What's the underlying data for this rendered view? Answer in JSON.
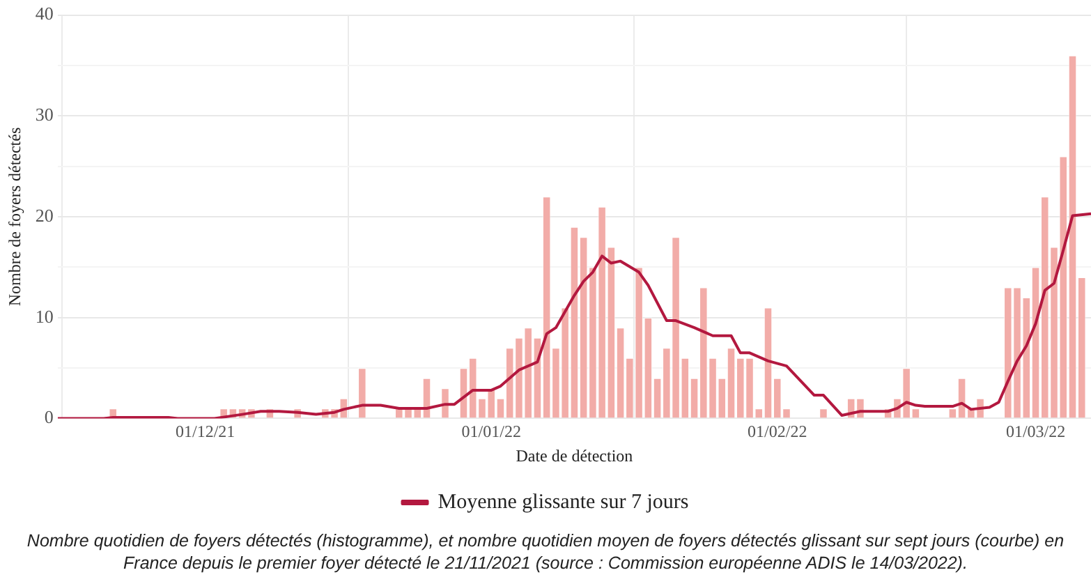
{
  "chart_data": {
    "type": "bar",
    "xlabel": "Date de détection",
    "ylabel": "Nombre de foyers détectés",
    "xlim": [
      "2021-11-15",
      "2022-03-07"
    ],
    "xticks": [
      {
        "value": "2021-12-01",
        "label": "01/12/21"
      },
      {
        "value": "2022-01-01",
        "label": "01/01/22"
      },
      {
        "value": "2022-02-01",
        "label": "01/02/22"
      },
      {
        "value": "2022-03-01",
        "label": "01/03/22"
      }
    ],
    "ylim": [
      0,
      40
    ],
    "yticks": [
      0,
      {
        "value": 5,
        "label": null
      },
      10,
      {
        "value": 15,
        "label": null
      },
      20,
      {
        "value": 25,
        "label": null
      },
      30,
      {
        "value": 35,
        "label": null
      },
      40
    ],
    "grid": true,
    "legend": "bottom",
    "marker": "none",
    "series": [
      {
        "color": "#f2aca8",
        "x": [
          "2021-11-21",
          "2021-12-03",
          "2021-12-04",
          "2021-12-05",
          "2021-12-06",
          "2021-12-08",
          "2021-12-11",
          "2021-12-14",
          "2021-12-15",
          "2021-12-16",
          "2021-12-18",
          "2021-12-22",
          "2021-12-23",
          "2021-12-24",
          "2021-12-25",
          "2021-12-27",
          "2021-12-29",
          "2021-12-30",
          "2021-12-31",
          "2022-01-01",
          "2022-01-02",
          "2022-01-03",
          "2022-01-04",
          "2022-01-05",
          "2022-01-06",
          "2022-01-07",
          "2022-01-08",
          "2022-01-09",
          "2022-01-10",
          "2022-01-11",
          "2022-01-12",
          "2022-01-13",
          "2022-01-14",
          "2022-01-15",
          "2022-01-16",
          "2022-01-17",
          "2022-01-18",
          "2022-01-19",
          "2022-01-20",
          "2022-01-21",
          "2022-01-22",
          "2022-01-23",
          "2022-01-24",
          "2022-01-25",
          "2022-01-26",
          "2022-01-27",
          "2022-01-28",
          "2022-01-29",
          "2022-01-30",
          "2022-01-31",
          "2022-02-01",
          "2022-02-02",
          "2022-02-06",
          "2022-02-09",
          "2022-02-10",
          "2022-02-13",
          "2022-02-14",
          "2022-02-15",
          "2022-02-16",
          "2022-02-20",
          "2022-02-21",
          "2022-02-22",
          "2022-02-23",
          "2022-02-26",
          "2022-02-27",
          "2022-02-28",
          "2022-03-01",
          "2022-03-02",
          "2022-03-03",
          "2022-03-04",
          "2022-03-05",
          "2022-03-06"
        ],
        "values": [
          1,
          1,
          1,
          1,
          1,
          1,
          1,
          1,
          1,
          2,
          5,
          1,
          1,
          1,
          4,
          3,
          5,
          6,
          2,
          3,
          2,
          7,
          8,
          9,
          8,
          22,
          7,
          11,
          19,
          18,
          15,
          21,
          17,
          9,
          6,
          15,
          10,
          4,
          7,
          18,
          6,
          4,
          13,
          6,
          4,
          7,
          6,
          6,
          1,
          11,
          4,
          1,
          1,
          2,
          2,
          1,
          2,
          5,
          1,
          1,
          4,
          1,
          2,
          13,
          13,
          12,
          15,
          22,
          17,
          26,
          36,
          14
        ]
      },
      {
        "type": "line",
        "name": "Moyenne glissante sur 7 jours",
        "color": "#b3183f",
        "x": [
          "2021-11-15",
          "2021-11-20",
          "2021-11-21",
          "2021-11-27",
          "2021-11-28",
          "2021-12-02",
          "2021-12-05",
          "2021-12-07",
          "2021-12-09",
          "2021-12-11",
          "2021-12-13",
          "2021-12-15",
          "2021-12-16",
          "2021-12-18",
          "2021-12-20",
          "2021-12-22",
          "2021-12-25",
          "2021-12-27",
          "2021-12-28",
          "2021-12-30",
          "2022-01-01",
          "2022-01-02",
          "2022-01-04",
          "2022-01-06",
          "2022-01-07",
          "2022-01-08",
          "2022-01-10",
          "2022-01-11",
          "2022-01-12",
          "2022-01-13",
          "2022-01-14",
          "2022-01-15",
          "2022-01-17",
          "2022-01-18",
          "2022-01-20",
          "2022-01-21",
          "2022-01-23",
          "2022-01-25",
          "2022-01-27",
          "2022-01-28",
          "2022-01-29",
          "2022-01-31",
          "2022-02-02",
          "2022-02-05",
          "2022-02-06",
          "2022-02-08",
          "2022-02-10",
          "2022-02-13",
          "2022-02-14",
          "2022-02-15",
          "2022-02-16",
          "2022-02-17",
          "2022-02-20",
          "2022-02-21",
          "2022-02-22",
          "2022-02-24",
          "2022-02-25",
          "2022-02-26",
          "2022-02-27",
          "2022-02-28",
          "2022-03-01",
          "2022-03-02",
          "2022-03-03",
          "2022-03-04",
          "2022-03-05",
          "2022-03-07"
        ],
        "values": [
          0,
          0,
          0.1,
          0.1,
          0,
          0,
          0.4,
          0.7,
          0.7,
          0.6,
          0.4,
          0.6,
          0.9,
          1.3,
          1.3,
          1.0,
          1.0,
          1.4,
          1.4,
          2.8,
          2.8,
          3.2,
          4.8,
          5.6,
          8.4,
          9.0,
          12.2,
          13.6,
          14.5,
          16.1,
          15.4,
          15.6,
          14.5,
          13.2,
          9.7,
          9.7,
          9.0,
          8.2,
          8.2,
          6.5,
          6.5,
          5.7,
          5.2,
          2.3,
          2.3,
          0.3,
          0.7,
          0.7,
          1.0,
          1.6,
          1.3,
          1.2,
          1.2,
          1.5,
          0.9,
          1.1,
          1.6,
          3.7,
          5.7,
          7.2,
          9.4,
          12.7,
          13.4,
          16.7,
          20.1,
          20.3
        ]
      }
    ],
    "annotations": [
      "Nombre quotidien de foyers détectés (histogramme), et nombre quotidien moyen de foyers détectés glissant sur sept jours (courbe) en France depuis le premier foyer détecté le 21/11/2021 (source : Commission européenne ADIS le 14/03/2022)."
    ]
  }
}
